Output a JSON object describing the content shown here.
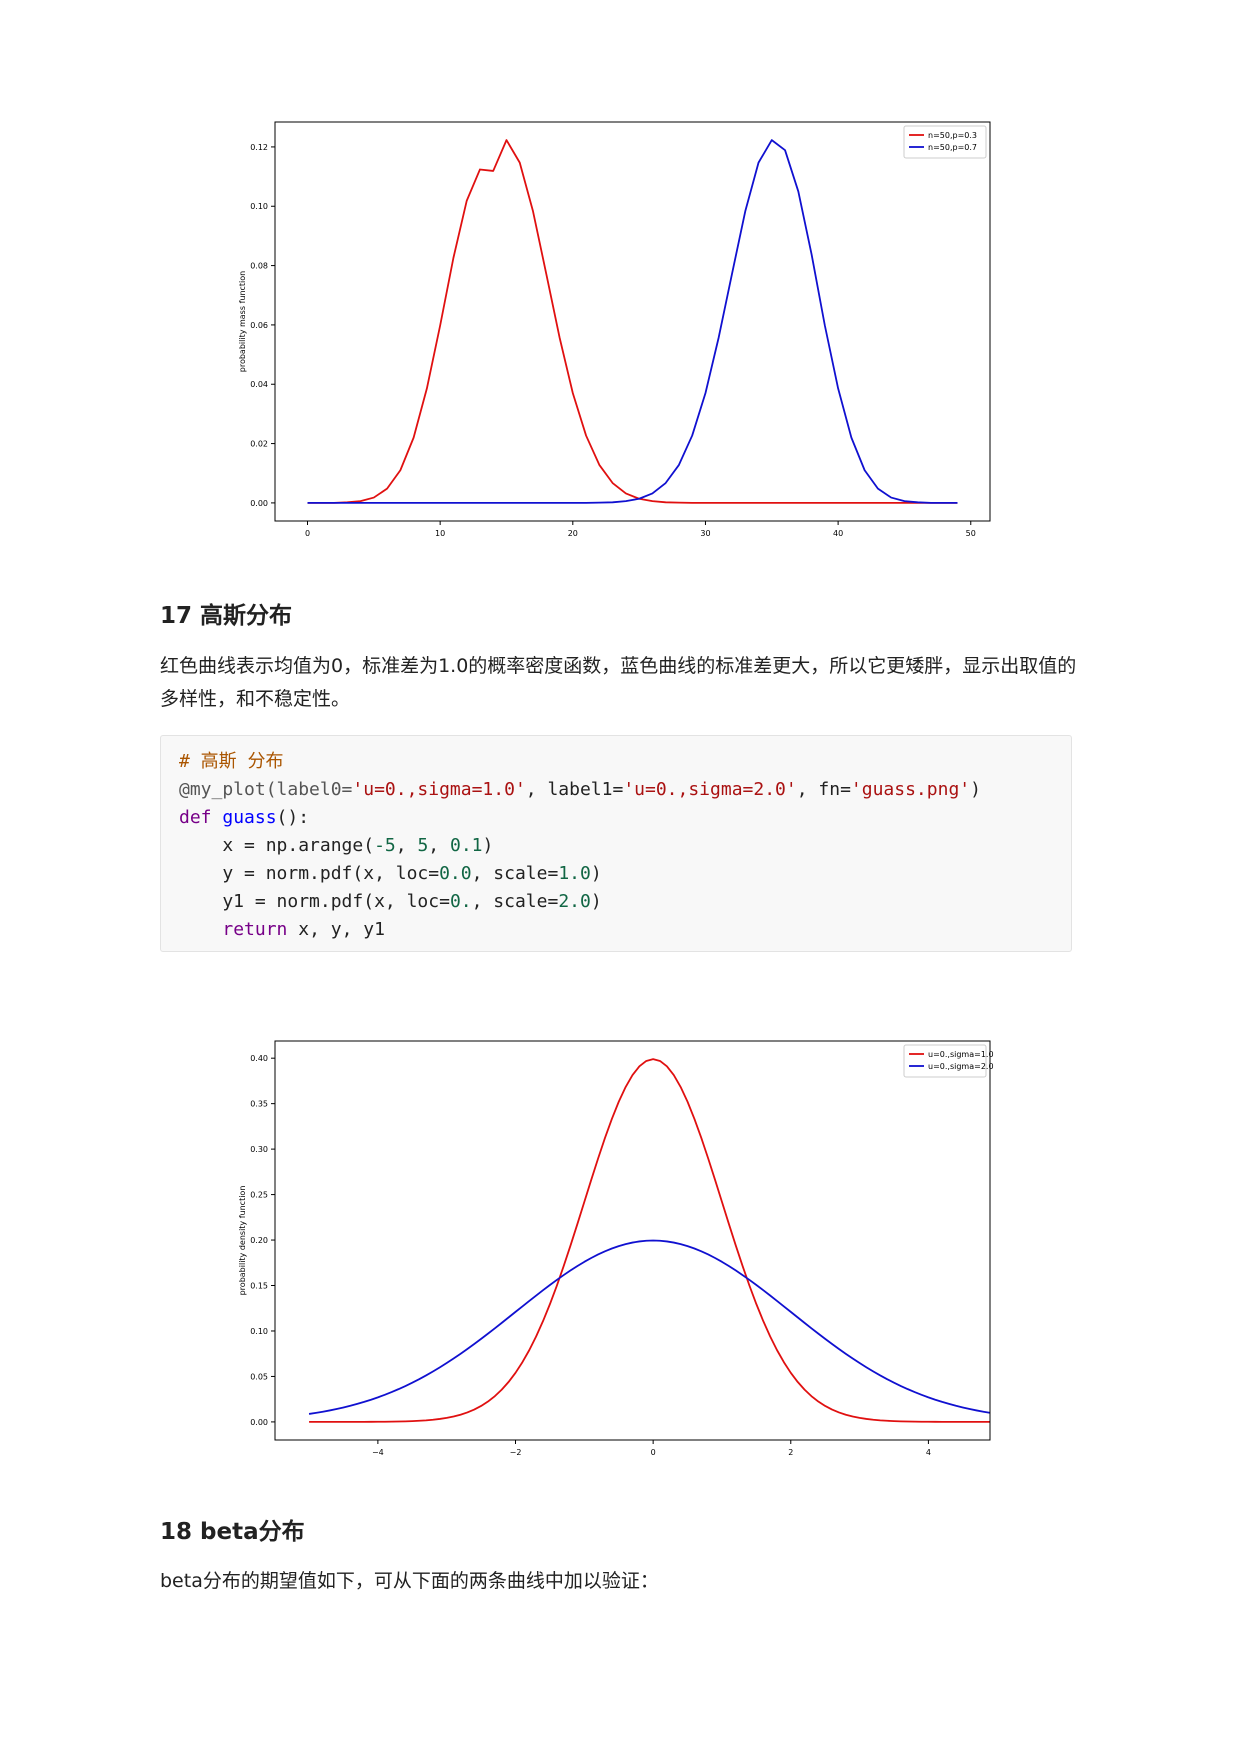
{
  "charts": [
    {
      "id": "binom",
      "chart_data": {
        "type": "line",
        "ylabel": "probability mass function",
        "xlabel": "",
        "xlim": [
          -2.45,
          51.45
        ],
        "ylim": [
          -0.0061,
          0.1284
        ],
        "xticks": [
          0,
          10,
          20,
          30,
          40,
          50
        ],
        "yticks": [
          0.0,
          0.02,
          0.04,
          0.06,
          0.08,
          0.1,
          0.12
        ],
        "ytick_decimals": 2,
        "legend": "upper right",
        "grid": false,
        "series": [
          {
            "name": "n=50,p=0.3",
            "color": "#e01010",
            "x": [
              0,
              1,
              2,
              3,
              4,
              5,
              6,
              7,
              8,
              9,
              10,
              11,
              12,
              13,
              14,
              15,
              16,
              17,
              18,
              19,
              20,
              21,
              22,
              23,
              24,
              25,
              26,
              27,
              28,
              29,
              30,
              31,
              32,
              33,
              34,
              35,
              36,
              37,
              38,
              39,
              40,
              41,
              42,
              43,
              44,
              45,
              46,
              47,
              48,
              49
            ],
            "y": [
              0.0,
              0.0,
              0.0,
              0.0002,
              0.0006,
              0.0018,
              0.0048,
              0.011,
              0.022,
              0.0386,
              0.0598,
              0.0826,
              0.1018,
              0.1124,
              0.1119,
              0.1223,
              0.1147,
              0.0983,
              0.0772,
              0.0558,
              0.037,
              0.0227,
              0.0128,
              0.0067,
              0.0032,
              0.0014,
              0.0006,
              0.0002,
              0.0001,
              0.0,
              0.0,
              0.0,
              0.0,
              0.0,
              0.0,
              0.0,
              0.0,
              0.0,
              0.0,
              0.0,
              0.0,
              0.0,
              0.0,
              0.0,
              0.0,
              0.0,
              0.0,
              0.0,
              0.0,
              0.0
            ]
          },
          {
            "name": "n=50,p=0.7",
            "color": "#1010d0",
            "x": [
              0,
              1,
              2,
              3,
              4,
              5,
              6,
              7,
              8,
              9,
              10,
              11,
              12,
              13,
              14,
              15,
              16,
              17,
              18,
              19,
              20,
              21,
              22,
              23,
              24,
              25,
              26,
              27,
              28,
              29,
              30,
              31,
              32,
              33,
              34,
              35,
              36,
              37,
              38,
              39,
              40,
              41,
              42,
              43,
              44,
              45,
              46,
              47,
              48,
              49
            ],
            "y": [
              0.0,
              0.0,
              0.0,
              0.0,
              0.0,
              0.0,
              0.0,
              0.0,
              0.0,
              0.0,
              0.0,
              0.0,
              0.0,
              0.0,
              0.0,
              0.0,
              0.0,
              0.0,
              0.0,
              0.0,
              0.0,
              0.0,
              0.0001,
              0.0002,
              0.0006,
              0.0014,
              0.0032,
              0.0067,
              0.0128,
              0.0227,
              0.037,
              0.0558,
              0.0772,
              0.0983,
              0.1147,
              0.1223,
              0.1189,
              0.105,
              0.0838,
              0.0598,
              0.0386,
              0.022,
              0.011,
              0.0048,
              0.0018,
              0.0006,
              0.0002,
              0.0,
              0.0,
              0.0
            ]
          }
        ]
      }
    },
    {
      "id": "gauss",
      "chart_data": {
        "type": "line",
        "ylabel": "probability density function",
        "xlabel": "",
        "xlim": [
          -5.495,
          4.895
        ],
        "ylim": [
          -0.0199,
          0.4189
        ],
        "xticks": [
          -4,
          -2,
          0,
          2,
          4
        ],
        "xtick_labels": [
          "−4",
          "−2",
          "0",
          "2",
          "4"
        ],
        "yticks": [
          0.0,
          0.05,
          0.1,
          0.15,
          0.2,
          0.25,
          0.3,
          0.35,
          0.4
        ],
        "ytick_decimals": 2,
        "legend": "upper right",
        "grid": false,
        "series": [
          {
            "name": "u=0.,sigma=1.0",
            "color": "#e01010",
            "distribution": "normal",
            "mu": 0.0,
            "sigma": 1.0,
            "x_start": -5,
            "x_stop": 5,
            "x_step": 0.1
          },
          {
            "name": "u=0.,sigma=2.0",
            "color": "#1010d0",
            "distribution": "normal",
            "mu": 0.0,
            "sigma": 2.0,
            "x_start": -5,
            "x_stop": 5,
            "x_step": 0.1
          }
        ]
      }
    }
  ],
  "section17": {
    "heading": "17 高斯分布",
    "paragraph": "红色曲线表示均值为0，标准差为1.0的概率密度函数，蓝色曲线的标准差更大，所以它更矮胖，显示出取值的多样性，和不稳定性。"
  },
  "code": {
    "comment": "# 高斯 分布",
    "l2_a": "@my_plot(label0=",
    "l2_s1": "'u=0.,sigma=1.0'",
    "l2_b": ", label1=",
    "l2_s2": "'u=0.,sigma=2.0'",
    "l2_c": ", fn=",
    "l2_s3": "'guass.png'",
    "l2_d": ")",
    "l3_kw": "def",
    "l3_fn": "guass",
    "l3_rest": "():",
    "l4_a": "    x = np.arange(",
    "l4_n1": "-5",
    "l4_b": ", ",
    "l4_n2": "5",
    "l4_c": ", ",
    "l4_n3": "0.1",
    "l4_d": ")",
    "l5_a": "    y = norm.pdf(x, loc=",
    "l5_n1": "0.0",
    "l5_b": ", scale=",
    "l5_n2": "1.0",
    "l5_c": ")",
    "l6_a": "    y1 = norm.pdf(x, loc=",
    "l6_n1": "0.",
    "l6_b": ", scale=",
    "l6_n2": "2.0",
    "l6_c": ")",
    "l7_indent": "    ",
    "l7_kw": "return",
    "l7_rest": " x, y, y1"
  },
  "section18": {
    "heading": "18 beta分布",
    "paragraph": "beta分布的期望值如下，可从下面的两条曲线中加以验证："
  }
}
